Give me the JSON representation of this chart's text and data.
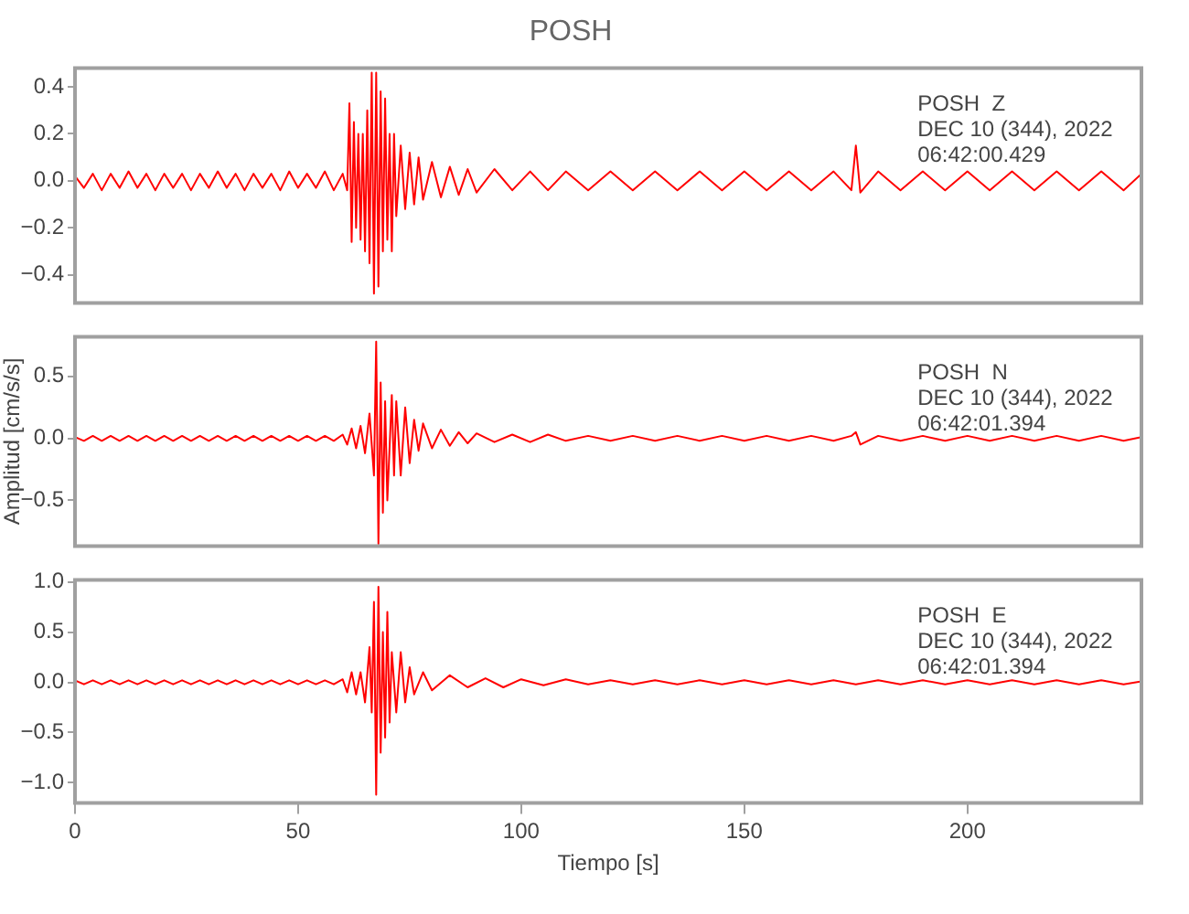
{
  "chart_data": [
    {
      "type": "line",
      "title": "POSH",
      "annotations": [
        "POSH  Z",
        "DEC 10 (344), 2022",
        "06:42:00.429"
      ],
      "x": [
        0,
        2,
        4,
        6,
        8,
        10,
        12,
        14,
        16,
        18,
        20,
        22,
        24,
        26,
        28,
        30,
        32,
        34,
        36,
        38,
        40,
        42,
        44,
        46,
        48,
        50,
        52,
        54,
        56,
        58,
        60,
        61,
        61.5,
        62,
        62.5,
        63,
        63.5,
        64,
        64.5,
        65,
        65.5,
        66,
        66.5,
        67,
        67.5,
        68,
        68.5,
        69,
        69.5,
        70,
        70.5,
        71,
        71.5,
        72,
        73,
        74,
        75,
        76,
        77,
        78,
        80,
        82,
        84,
        86,
        88,
        90,
        94,
        98,
        102,
        106,
        110,
        115,
        120,
        125,
        130,
        135,
        140,
        145,
        150,
        155,
        160,
        165,
        170,
        174,
        175,
        176,
        180,
        185,
        190,
        195,
        200,
        205,
        210,
        215,
        220,
        225,
        230,
        235,
        239
      ],
      "series": [
        {
          "color": "#ff0000",
          "values": [
            0.02,
            -0.03,
            0.03,
            -0.04,
            0.03,
            -0.03,
            0.04,
            -0.03,
            0.03,
            -0.04,
            0.03,
            -0.03,
            0.03,
            -0.04,
            0.03,
            -0.03,
            0.04,
            -0.03,
            0.03,
            -0.04,
            0.03,
            -0.03,
            0.03,
            -0.04,
            0.04,
            -0.03,
            0.03,
            -0.03,
            0.04,
            -0.04,
            0.03,
            -0.04,
            0.33,
            -0.26,
            0.25,
            -0.2,
            0.2,
            -0.25,
            0.2,
            -0.3,
            0.3,
            -0.35,
            0.46,
            -0.48,
            0.46,
            -0.45,
            0.38,
            -0.3,
            0.35,
            -0.25,
            0.2,
            -0.3,
            0.2,
            -0.15,
            0.15,
            -0.12,
            0.12,
            -0.1,
            0.1,
            -0.08,
            0.08,
            -0.07,
            0.06,
            -0.06,
            0.05,
            -0.05,
            0.05,
            -0.04,
            0.04,
            -0.04,
            0.04,
            -0.04,
            0.04,
            -0.04,
            0.04,
            -0.04,
            0.04,
            -0.04,
            0.04,
            -0.04,
            0.04,
            -0.04,
            0.04,
            -0.04,
            0.15,
            -0.05,
            0.04,
            -0.04,
            0.04,
            -0.04,
            0.04,
            -0.04,
            0.04,
            -0.04,
            0.04,
            -0.04,
            0.04,
            -0.04,
            0.03
          ]
        }
      ],
      "xlim": [
        0,
        239
      ],
      "xticks": [
        0,
        50,
        100,
        150,
        200
      ],
      "ylim": [
        -0.52,
        0.48
      ],
      "yticks": [
        {
          "value": 0.4,
          "label": "0.4"
        },
        {
          "value": 0.2,
          "label": "0.2"
        },
        {
          "value": 0,
          "label": "0.0"
        },
        {
          "value": -0.2,
          "label": "−0.2"
        },
        {
          "value": -0.4,
          "label": "−0.4"
        }
      ],
      "tick_labels": "y",
      "grid": false,
      "legend": false
    },
    {
      "type": "line",
      "ylabel": "Amplitud [cm/s/s]",
      "annotations": [
        "POSH  N",
        "DEC 10 (344), 2022",
        "06:42:01.394"
      ],
      "x": [
        0,
        2,
        4,
        6,
        8,
        10,
        12,
        14,
        16,
        18,
        20,
        22,
        24,
        26,
        28,
        30,
        32,
        34,
        36,
        38,
        40,
        42,
        44,
        46,
        48,
        50,
        52,
        54,
        56,
        58,
        60,
        61,
        62,
        63,
        64,
        65,
        66,
        67,
        67.5,
        68,
        68.5,
        69,
        69.5,
        70,
        71,
        71.5,
        72,
        73,
        74,
        75,
        76,
        77,
        78,
        80,
        82,
        84,
        86,
        88,
        90,
        94,
        98,
        102,
        106,
        110,
        115,
        120,
        125,
        130,
        135,
        140,
        145,
        150,
        155,
        160,
        165,
        170,
        174,
        175,
        176,
        180,
        185,
        190,
        195,
        200,
        205,
        210,
        215,
        220,
        225,
        230,
        235,
        239
      ],
      "series": [
        {
          "color": "#ff0000",
          "values": [
            0.01,
            -0.02,
            0.02,
            -0.02,
            0.02,
            -0.02,
            0.02,
            -0.02,
            0.02,
            -0.02,
            0.02,
            -0.02,
            0.02,
            -0.02,
            0.02,
            -0.02,
            0.02,
            -0.02,
            0.02,
            -0.02,
            0.02,
            -0.02,
            0.02,
            -0.02,
            0.02,
            -0.02,
            0.02,
            -0.02,
            0.02,
            -0.02,
            0.03,
            -0.05,
            0.08,
            -0.08,
            0.1,
            -0.12,
            0.2,
            -0.3,
            0.78,
            -0.85,
            0.45,
            -0.6,
            0.3,
            -0.5,
            0.35,
            -0.3,
            0.3,
            -0.3,
            0.25,
            -0.2,
            0.15,
            -0.1,
            0.12,
            -0.08,
            0.07,
            -0.06,
            0.05,
            -0.04,
            0.04,
            -0.03,
            0.03,
            -0.03,
            0.03,
            -0.02,
            0.02,
            -0.02,
            0.02,
            -0.02,
            0.02,
            -0.02,
            0.02,
            -0.02,
            0.02,
            -0.02,
            0.02,
            -0.02,
            0.02,
            0.05,
            -0.05,
            0.02,
            -0.02,
            0.02,
            -0.02,
            0.02,
            -0.02,
            0.02,
            -0.02,
            0.02,
            -0.02,
            0.02,
            -0.02,
            0.01
          ]
        }
      ],
      "xlim": [
        0,
        239
      ],
      "xticks": [
        0,
        50,
        100,
        150,
        200
      ],
      "ylim": [
        -0.87,
        0.82
      ],
      "yticks": [
        {
          "value": 0.5,
          "label": "0.5"
        },
        {
          "value": 0,
          "label": "0.0"
        },
        {
          "value": -0.5,
          "label": "−0.5"
        }
      ],
      "tick_labels": "y",
      "grid": false,
      "legend": false
    },
    {
      "type": "line",
      "xlabel": "Tiempo [s]",
      "annotations": [
        "POSH  E",
        "DEC 10 (344), 2022",
        "06:42:01.394"
      ],
      "x": [
        0,
        2,
        4,
        6,
        8,
        10,
        12,
        14,
        16,
        18,
        20,
        22,
        24,
        26,
        28,
        30,
        32,
        34,
        36,
        38,
        40,
        42,
        44,
        46,
        48,
        50,
        52,
        54,
        56,
        58,
        60,
        61,
        62,
        63,
        64,
        65,
        66,
        66.5,
        67,
        67.5,
        68,
        68.5,
        69,
        69.5,
        70,
        70.5,
        71,
        72,
        73,
        74,
        75,
        76,
        78,
        80,
        84,
        88,
        92,
        96,
        100,
        105,
        110,
        115,
        120,
        125,
        130,
        135,
        140,
        145,
        150,
        155,
        160,
        165,
        170,
        175,
        180,
        185,
        190,
        195,
        200,
        205,
        210,
        215,
        220,
        225,
        230,
        235,
        239
      ],
      "series": [
        {
          "color": "#ff0000",
          "values": [
            0.02,
            -0.02,
            0.02,
            -0.02,
            0.02,
            -0.02,
            0.02,
            -0.02,
            0.02,
            -0.02,
            0.02,
            -0.02,
            0.02,
            -0.02,
            0.02,
            -0.02,
            0.02,
            -0.02,
            0.02,
            -0.02,
            0.02,
            -0.02,
            0.02,
            -0.02,
            0.02,
            -0.02,
            0.02,
            -0.02,
            0.02,
            -0.02,
            0.03,
            -0.1,
            0.1,
            -0.12,
            0.1,
            -0.2,
            0.35,
            -0.3,
            0.8,
            -1.12,
            0.95,
            -0.7,
            0.5,
            -0.55,
            0.7,
            -0.4,
            0.3,
            -0.3,
            0.3,
            -0.2,
            0.15,
            -0.12,
            0.1,
            -0.08,
            0.07,
            -0.05,
            0.04,
            -0.05,
            0.03,
            -0.03,
            0.03,
            -0.02,
            0.02,
            -0.02,
            0.02,
            -0.02,
            0.02,
            -0.02,
            0.02,
            -0.02,
            0.02,
            -0.02,
            0.02,
            -0.02,
            0.02,
            -0.02,
            0.02,
            -0.02,
            0.02,
            -0.02,
            0.02,
            -0.02,
            0.02,
            -0.02,
            0.02,
            -0.02,
            0.01
          ]
        }
      ],
      "xlim": [
        0,
        239
      ],
      "xticks": [
        0,
        50,
        100,
        150,
        200
      ],
      "ylim": [
        -1.2,
        1.02
      ],
      "yticks": [
        {
          "value": 1,
          "label": "1.0"
        },
        {
          "value": 0.5,
          "label": "0.5"
        },
        {
          "value": 0,
          "label": "0.0"
        },
        {
          "value": -0.5,
          "label": "−0.5"
        },
        {
          "value": -1,
          "label": "−1.0"
        }
      ],
      "grid": false,
      "legend": false
    }
  ]
}
